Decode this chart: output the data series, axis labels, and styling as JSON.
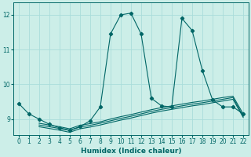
{
  "xlabel": "Humidex (Indice chaleur)",
  "bg_color": "#cceee8",
  "grid_color": "#aaddda",
  "line_color": "#006666",
  "xlim": [
    -0.5,
    22.5
  ],
  "ylim": [
    8.55,
    12.35
  ],
  "yticks": [
    9,
    10,
    11,
    12
  ],
  "xticks": [
    0,
    1,
    2,
    3,
    4,
    5,
    6,
    7,
    8,
    9,
    10,
    11,
    12,
    13,
    14,
    15,
    16,
    17,
    18,
    19,
    20,
    21,
    22
  ],
  "main_x": [
    0,
    1,
    2,
    3,
    4,
    5,
    6,
    7,
    8,
    9,
    10,
    11,
    12,
    13,
    14,
    15,
    16,
    17,
    18,
    19,
    20,
    21,
    22
  ],
  "main_y": [
    9.45,
    9.15,
    9.0,
    8.85,
    8.75,
    8.68,
    8.78,
    8.95,
    9.35,
    11.45,
    12.0,
    12.05,
    11.45,
    9.6,
    9.38,
    9.35,
    11.9,
    11.55,
    10.4,
    9.55,
    9.35,
    9.35,
    9.15
  ],
  "line2_x": [
    2,
    3,
    4,
    5,
    6,
    7,
    8,
    9,
    10,
    11,
    12,
    13,
    14,
    15,
    16,
    17,
    18,
    19,
    20,
    21,
    22
  ],
  "line2_y": [
    8.88,
    8.83,
    8.78,
    8.72,
    8.82,
    8.87,
    8.92,
    9.0,
    9.07,
    9.13,
    9.2,
    9.27,
    9.33,
    9.38,
    9.43,
    9.48,
    9.52,
    9.57,
    9.62,
    9.66,
    9.15
  ],
  "line3_x": [
    2,
    3,
    4,
    5,
    6,
    7,
    8,
    9,
    10,
    11,
    12,
    13,
    14,
    15,
    16,
    17,
    18,
    19,
    20,
    21,
    22
  ],
  "line3_y": [
    8.83,
    8.78,
    8.73,
    8.67,
    8.77,
    8.82,
    8.88,
    8.95,
    9.02,
    9.08,
    9.15,
    9.22,
    9.28,
    9.33,
    9.38,
    9.43,
    9.47,
    9.52,
    9.57,
    9.62,
    9.08
  ],
  "line4_x": [
    2,
    3,
    4,
    5,
    6,
    7,
    8,
    9,
    10,
    11,
    12,
    13,
    14,
    15,
    16,
    17,
    18,
    19,
    20,
    21,
    22
  ],
  "line4_y": [
    8.78,
    8.73,
    8.68,
    8.62,
    8.72,
    8.77,
    8.83,
    8.9,
    8.97,
    9.03,
    9.1,
    9.17,
    9.23,
    9.28,
    9.33,
    9.38,
    9.42,
    9.47,
    9.52,
    9.57,
    9.05
  ]
}
